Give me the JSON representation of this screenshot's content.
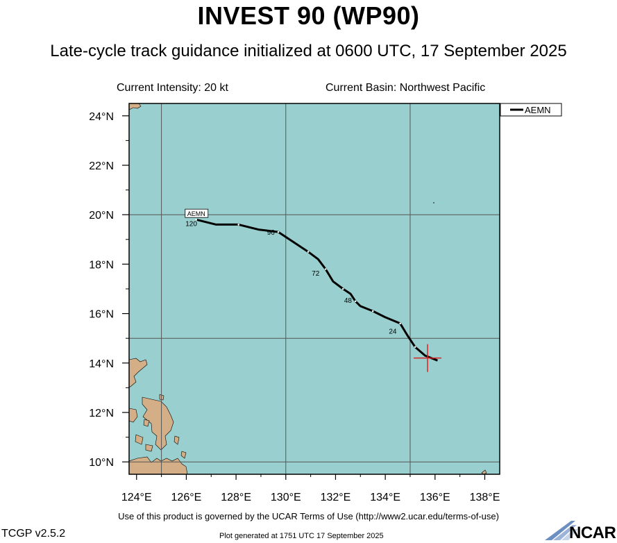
{
  "header": {
    "title": "INVEST 90 (WP90)",
    "subtitle": "Late-cycle track guidance initialized at 0600 UTC, 17 September 2025",
    "intensity": "Current Intensity: 20 kt",
    "basin": "Current Basin: Northwest Pacific"
  },
  "map": {
    "lon_range": [
      123.7,
      138.6
    ],
    "lat_range": [
      9.5,
      24.5
    ],
    "lon_ticks": [
      "124°E",
      "126°E",
      "128°E",
      "130°E",
      "132°E",
      "134°E",
      "136°E",
      "138°E"
    ],
    "lat_ticks": [
      "10°N",
      "12°N",
      "14°N",
      "16°N",
      "18°N",
      "20°N",
      "22°N",
      "24°N"
    ],
    "grid_lons": [
      125,
      130,
      135
    ],
    "grid_lats": [
      10,
      15,
      20
    ],
    "ocean_color": "#99cfcf",
    "land_color": "#d4ae87",
    "current_position": {
      "lon": 135.7,
      "lat": 14.2
    },
    "legend": {
      "label": "AEMN",
      "position": "top-right"
    },
    "tracks": [
      {
        "name": "AEMN",
        "color": "#000000",
        "points": [
          {
            "hour": 0,
            "lon": 136.1,
            "lat": 14.1
          },
          {
            "hour": 6,
            "lon": 135.6,
            "lat": 14.3
          },
          {
            "hour": 12,
            "lon": 135.2,
            "lat": 14.65
          },
          {
            "hour": 18,
            "lon": 134.9,
            "lat": 15.1
          },
          {
            "hour": 24,
            "lon": 134.6,
            "lat": 15.6
          },
          {
            "hour": 30,
            "lon": 134.0,
            "lat": 15.85
          },
          {
            "hour": 36,
            "lon": 133.5,
            "lat": 16.1
          },
          {
            "hour": 42,
            "lon": 133.0,
            "lat": 16.3
          },
          {
            "hour": 48,
            "lon": 132.8,
            "lat": 16.5
          },
          {
            "hour": 54,
            "lon": 132.6,
            "lat": 16.8
          },
          {
            "hour": 60,
            "lon": 132.3,
            "lat": 17.0
          },
          {
            "hour": 66,
            "lon": 131.9,
            "lat": 17.3
          },
          {
            "hour": 72,
            "lon": 131.6,
            "lat": 17.8
          },
          {
            "hour": 78,
            "lon": 131.3,
            "lat": 18.2
          },
          {
            "hour": 84,
            "lon": 130.9,
            "lat": 18.5
          },
          {
            "hour": 90,
            "lon": 130.3,
            "lat": 18.9
          },
          {
            "hour": 96,
            "lon": 129.7,
            "lat": 19.3
          },
          {
            "hour": 102,
            "lon": 128.9,
            "lat": 19.4
          },
          {
            "hour": 108,
            "lon": 128.1,
            "lat": 19.6
          },
          {
            "hour": 114,
            "lon": 127.2,
            "lat": 19.6
          },
          {
            "hour": 120,
            "lon": 126.4,
            "lat": 19.8
          }
        ],
        "hour_labels": [
          {
            "text": "24",
            "lon": 134.3,
            "lat": 15.3
          },
          {
            "text": "48",
            "lon": 132.5,
            "lat": 16.55
          },
          {
            "text": "72",
            "lon": 131.2,
            "lat": 17.65
          },
          {
            "text": "96",
            "lon": 129.4,
            "lat": 19.3
          },
          {
            "text": "120",
            "lon": 126.2,
            "lat": 19.65
          }
        ],
        "end_label": {
          "text": "AEMN",
          "lon": 126.4,
          "lat": 20.0
        }
      }
    ]
  },
  "footer": {
    "terms": "Use of this product is governed by the UCAR Terms of Use (http://www2.ucar.edu/terms-of-use)",
    "version": "TCGP v2.5.2",
    "generated": "Plot generated at 1751 UTC   17 September 2025",
    "logo_text": "NCAR"
  }
}
